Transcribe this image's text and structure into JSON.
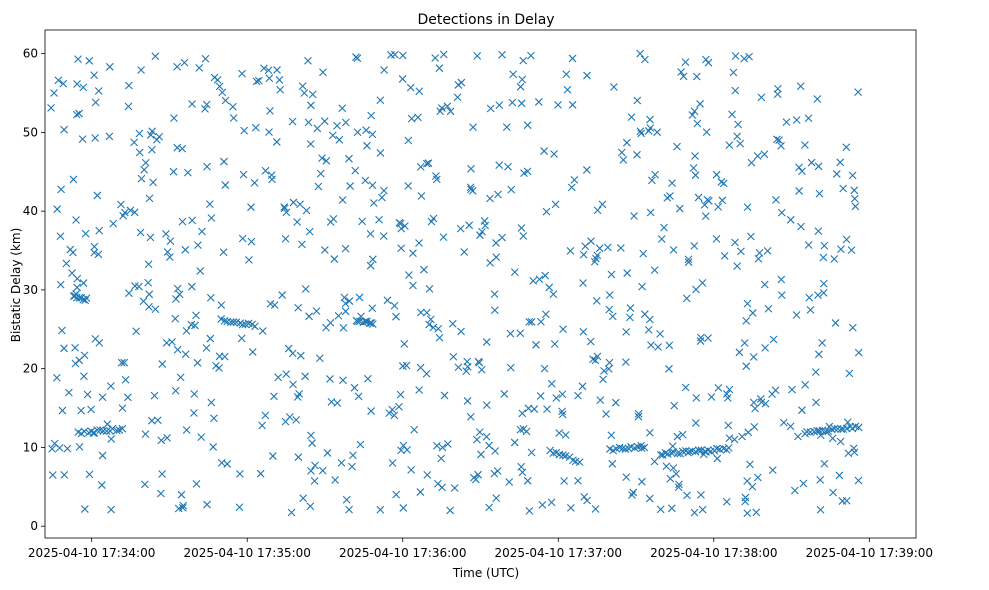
{
  "chart_data": {
    "type": "scatter",
    "title": "Detections in Delay",
    "xlabel": "Time (UTC)",
    "ylabel": "Bistatic Delay (km)",
    "xlim_seconds": [
      -18,
      318
    ],
    "ylim": [
      -1.5,
      63
    ],
    "x_origin": "2025-04-10 17:34:00",
    "x_ticks": [
      {
        "seconds": 0,
        "label": "2025-04-10 17:34:00"
      },
      {
        "seconds": 60,
        "label": "2025-04-10 17:35:00"
      },
      {
        "seconds": 120,
        "label": "2025-04-10 17:36:00"
      },
      {
        "seconds": 180,
        "label": "2025-04-10 17:37:00"
      },
      {
        "seconds": 240,
        "label": "2025-04-10 17:38:00"
      },
      {
        "seconds": 300,
        "label": "2025-04-10 17:39:00"
      }
    ],
    "y_ticks": [
      0,
      10,
      20,
      30,
      40,
      50,
      60
    ],
    "marker": "x",
    "series_color": "#1f77b4",
    "series": [
      {
        "name": "detections",
        "approx_count": 1000,
        "x_range_seconds": [
          -16,
          296
        ],
        "y_range_km": [
          1.5,
          60
        ]
      }
    ],
    "visible_tracks": [
      {
        "t_start": -7,
        "t_end": -2,
        "delay_start": 29.2,
        "delay_end": 28.8
      },
      {
        "t_start": -5,
        "t_end": 12,
        "delay_start": 11.8,
        "delay_end": 12.4
      },
      {
        "t_start": 50,
        "t_end": 63,
        "delay_start": 26.2,
        "delay_end": 25.5
      },
      {
        "t_start": 102,
        "t_end": 108,
        "delay_start": 26.2,
        "delay_end": 25.8
      },
      {
        "t_start": 177,
        "t_end": 188,
        "delay_start": 9.5,
        "delay_end": 8.2
      },
      {
        "t_start": 200,
        "t_end": 213,
        "delay_start": 9.7,
        "delay_end": 10.1
      },
      {
        "t_start": 220,
        "t_end": 246,
        "delay_start": 9.2,
        "delay_end": 9.8
      },
      {
        "t_start": 275,
        "t_end": 296,
        "delay_start": 11.8,
        "delay_end": 12.6
      }
    ]
  }
}
